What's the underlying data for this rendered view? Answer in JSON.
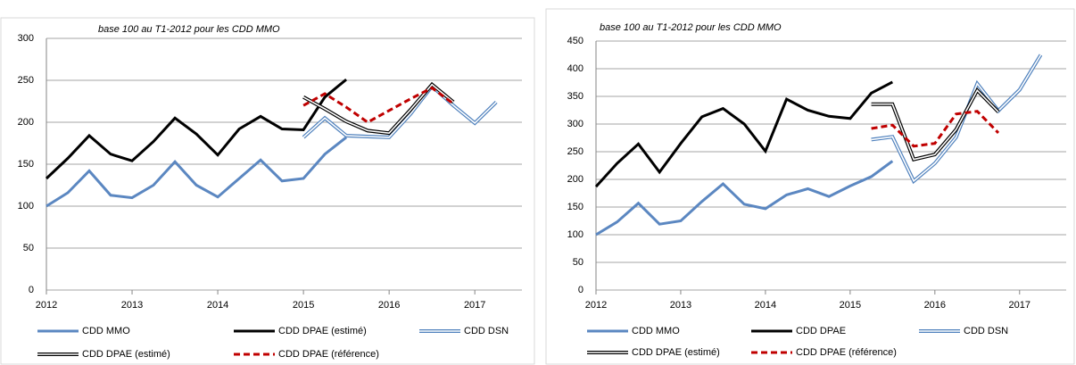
{
  "chart_data": [
    {
      "type": "line",
      "annotation": "base 100 au T1-2012 pour les CDD MMO",
      "xlim": [
        2012,
        2017.55
      ],
      "xticks": [
        2012,
        2013,
        2014,
        2015,
        2016,
        2017
      ],
      "ylim": [
        0,
        300
      ],
      "yticks": [
        0,
        50,
        100,
        150,
        200,
        250,
        300
      ],
      "grid": true,
      "series": [
        {
          "name": "CDD MMO",
          "color": "#5b87c1",
          "style": "solid",
          "x": [
            2012,
            2012.25,
            2012.5,
            2012.75,
            2013,
            2013.25,
            2013.5,
            2013.75,
            2014,
            2014.25,
            2014.5,
            2014.75,
            2015,
            2015.25,
            2015.5
          ],
          "values": [
            100,
            116,
            142,
            113,
            110,
            125,
            153,
            125,
            111,
            133,
            155,
            130,
            133,
            162,
            182
          ]
        },
        {
          "name": "CDD DPAE (estimé)",
          "color": "#000000",
          "style": "solid",
          "x": [
            2012,
            2012.25,
            2012.5,
            2012.75,
            2013,
            2013.25,
            2013.5,
            2013.75,
            2014,
            2014.25,
            2014.5,
            2014.75,
            2015,
            2015.25,
            2015.5
          ],
          "values": [
            133,
            157,
            184,
            162,
            154,
            177,
            205,
            186,
            161,
            192,
            207,
            192,
            191,
            230,
            251
          ]
        },
        {
          "name": "CDD DSN",
          "color": "#9dbbe0",
          "style": "double",
          "x": [
            2015,
            2015.25,
            2015.5,
            2015.75,
            2016,
            2016.25,
            2016.5,
            2016.75,
            2017,
            2017.25
          ],
          "values": [
            182,
            205,
            184,
            183,
            182,
            210,
            243,
            220,
            199,
            224
          ]
        },
        {
          "name": "CDD DPAE (estimé)",
          "color": "#000000",
          "style": "double",
          "x": [
            2015,
            2015.25,
            2015.5,
            2015.75,
            2016,
            2016.25,
            2016.5,
            2016.75
          ],
          "values": [
            230,
            216,
            201,
            190,
            187,
            215,
            245,
            224
          ]
        },
        {
          "name": "CDD DPAE (référence)",
          "color": "#c00000",
          "style": "dashed",
          "x": [
            2015,
            2015.25,
            2015.5,
            2015.75,
            2016.25,
            2016.5,
            2016.75
          ],
          "values": [
            220,
            234,
            218,
            200,
            228,
            241,
            222
          ]
        }
      ]
    },
    {
      "type": "line",
      "annotation": "base 100 au T1-2012 pour les CDD MMO",
      "xlim": [
        2012,
        2017.55
      ],
      "xticks": [
        2012,
        2013,
        2014,
        2015,
        2016,
        2017
      ],
      "ylim": [
        0,
        450
      ],
      "yticks": [
        0,
        50,
        100,
        150,
        200,
        250,
        300,
        350,
        400,
        450
      ],
      "grid": true,
      "series": [
        {
          "name": "CDD MMO",
          "color": "#5b87c1",
          "style": "solid",
          "x": [
            2012,
            2012.25,
            2012.5,
            2012.75,
            2013,
            2013.25,
            2013.5,
            2013.75,
            2014,
            2014.25,
            2014.5,
            2014.75,
            2015,
            2015.25,
            2015.5
          ],
          "values": [
            100,
            123,
            157,
            119,
            125,
            160,
            192,
            155,
            147,
            172,
            183,
            169,
            188,
            205,
            233
          ]
        },
        {
          "name": "CDD DPAE",
          "color": "#000000",
          "style": "solid",
          "x": [
            2012,
            2012.25,
            2012.5,
            2012.75,
            2013,
            2013.25,
            2013.5,
            2013.75,
            2014,
            2014.25,
            2014.5,
            2014.75,
            2015,
            2015.25,
            2015.5
          ],
          "values": [
            187,
            229,
            264,
            213,
            265,
            313,
            328,
            300,
            251,
            345,
            325,
            314,
            310,
            356,
            376
          ]
        },
        {
          "name": "CDD DSN",
          "color": "#9dbbe0",
          "style": "double",
          "x": [
            2015.25,
            2015.5,
            2015.75,
            2016,
            2016.25,
            2016.5,
            2016.75,
            2017,
            2017.25
          ],
          "values": [
            272,
            277,
            197,
            229,
            276,
            373,
            324,
            362,
            425
          ]
        },
        {
          "name": "CDD DPAE (estimé)",
          "color": "#000000",
          "style": "double",
          "x": [
            2015.25,
            2015.5,
            2015.75,
            2016,
            2016.25,
            2016.5,
            2016.75
          ],
          "values": [
            336,
            336,
            236,
            245,
            290,
            361,
            322
          ]
        },
        {
          "name": "CDD DPAE (référence)",
          "color": "#c00000",
          "style": "dashed",
          "x": [
            2015.25,
            2015.5,
            2015.75,
            2016,
            2016.25,
            2016.5,
            2016.75
          ],
          "values": [
            292,
            298,
            260,
            265,
            318,
            323,
            284
          ]
        }
      ]
    }
  ]
}
